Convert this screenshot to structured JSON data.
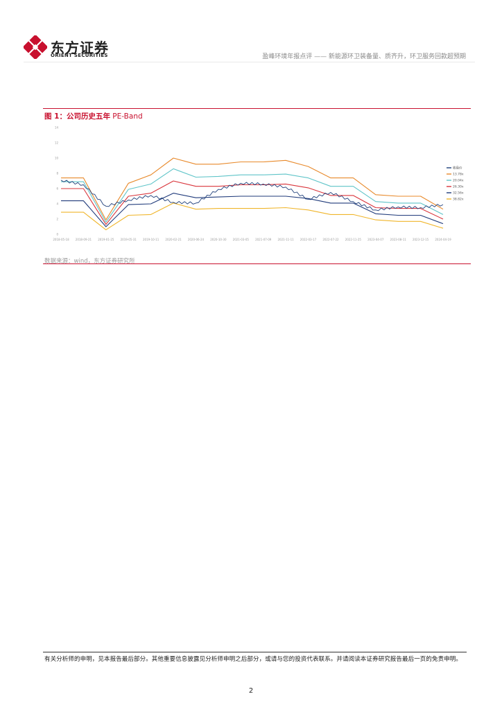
{
  "header": {
    "logo_cn": "东方证券",
    "logo_en": "ORIENT SECURITIES",
    "report_title": "盈峰环境年报点评 —— 新能源环卫装备量、质齐升，环卫服务回款超预期"
  },
  "figure": {
    "title_prefix": "图 1：",
    "title_main": "公司历史五年",
    "title_suffix": " PE-Band",
    "source": "数据来源：wind，东方证券研究所"
  },
  "footer": {
    "disclaimer": "有关分析师的申明，见本报告最后部分。其他重要信息披露见分析师申明之后部分，或请与您的投资代表联系。并请阅读本证券研究报告最后一页的免责申明。",
    "page_number": "2"
  },
  "colors": {
    "brand_red": "#c8102e",
    "price": "#1f3f7a",
    "band_1": "#e8892a",
    "band_2": "#5ec4c8",
    "band_3": "#d9343b",
    "band_4": "#1f3a7a",
    "band_5": "#f0b52a"
  },
  "chart_data": {
    "type": "line",
    "title": "",
    "ylim": [
      0,
      14
    ],
    "y_ticks": [
      "0",
      "2",
      "4",
      "6",
      "8",
      "10",
      "12",
      "14"
    ],
    "categories": [
      "2018-05-18",
      "2018-09-21",
      "2019-01-25",
      "2019-05-31",
      "2019-10-11",
      "2020-02-21",
      "2020-06-24",
      "2020-10-30",
      "2021-03-05",
      "2021-07-09",
      "2021-11-11",
      "2022-03-17",
      "2022-07-22",
      "2022-11-25",
      "2023-04-07",
      "2023-08-11",
      "2023-12-15",
      "2024-04-19"
    ],
    "legend": [
      "收盘价",
      "13.78x",
      "20.04x",
      "26.30x",
      "32.56x",
      "38.82x"
    ],
    "series": [
      {
        "name": "收盘价",
        "values": [
          7.1,
          6.5,
          3.7,
          4.5,
          5.1,
          4.2,
          4.1,
          5.9,
          6.7,
          6.6,
          6.2,
          4.6,
          5.5,
          4.3,
          3.2,
          3.6,
          3.5,
          3.9
        ]
      },
      {
        "name": "13.78x",
        "values": [
          7.4,
          7.4,
          1.9,
          6.7,
          7.8,
          10.0,
          9.2,
          9.2,
          9.5,
          9.5,
          9.7,
          8.9,
          7.4,
          7.4,
          5.2,
          5.0,
          5.0,
          3.3
        ]
      },
      {
        "name": "20.04x",
        "values": [
          6.9,
          6.9,
          1.6,
          5.9,
          6.6,
          8.6,
          7.5,
          7.6,
          7.8,
          7.8,
          7.9,
          7.4,
          6.3,
          6.3,
          4.3,
          4.1,
          4.1,
          2.6
        ]
      },
      {
        "name": "26.30x",
        "values": [
          6.0,
          6.0,
          1.3,
          5.0,
          5.4,
          7.0,
          6.3,
          6.3,
          6.5,
          6.5,
          6.6,
          6.1,
          5.1,
          5.1,
          3.5,
          3.4,
          3.4,
          2.0
        ]
      },
      {
        "name": "32.56x",
        "values": [
          4.4,
          4.4,
          1.0,
          3.9,
          4.0,
          5.4,
          4.8,
          4.9,
          5.0,
          5.0,
          5.0,
          4.7,
          4.1,
          4.1,
          2.7,
          2.5,
          2.5,
          1.4
        ]
      },
      {
        "name": "38.82x",
        "values": [
          2.9,
          2.9,
          0.6,
          2.5,
          2.6,
          4.1,
          3.3,
          3.4,
          3.4,
          3.4,
          3.5,
          3.2,
          2.6,
          2.6,
          1.9,
          1.7,
          1.7,
          0.8
        ]
      }
    ]
  }
}
